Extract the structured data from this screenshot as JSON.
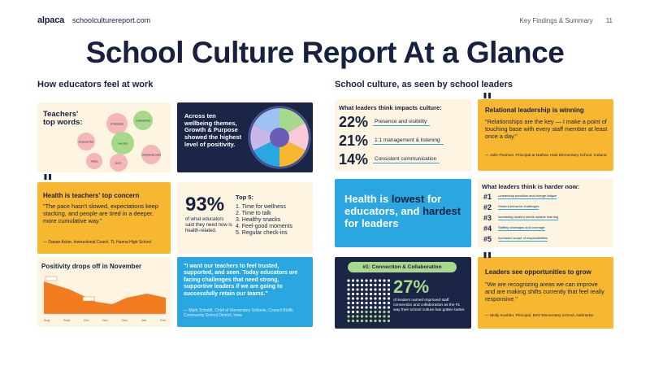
{
  "header": {
    "logo": "alpaca",
    "site": "schoolculturereport.com",
    "section": "Key Findings & Summary",
    "page": "11"
  },
  "title": "School Culture Report At a Glance",
  "left_heading": "How educators feel at work",
  "right_heading": "School culture, as seen by school leaders",
  "top_words": {
    "label": "Teachers' top words:",
    "bubbles": [
      {
        "word": "STRESSED",
        "color": "#f4b6b6"
      },
      {
        "word": "EXHAUSTED",
        "color": "#f4b6b6"
      },
      {
        "word": "SUPPORTED",
        "color": "#a8d98a"
      },
      {
        "word": "VALUED",
        "color": "#a8d98a"
      },
      {
        "word": "TIRED",
        "color": "#f4b6b6"
      },
      {
        "word": "OVERWHELMED",
        "color": "#f4b6b6"
      },
      {
        "word": "BUSY",
        "color": "#f4b6b6"
      }
    ]
  },
  "wellbeing": {
    "text": "Across ten wellbeing themes, Growth & Purpose showed the highest level of positivity."
  },
  "health_quote": {
    "heading": "Health is teachers' top concern",
    "quote": "\"The pace hasn't slowed, expectations keep stacking, and people are tired in a deeper, more cumulative way.\"",
    "attribution": "— Danae Acker, Instructional Coach, TL Hanna High School"
  },
  "stat93": {
    "value": "93%",
    "desc": "of what educators said they need now is health-related.",
    "top5_label": "Top 5:",
    "top5": [
      "1. Time for wellness",
      "2. Time to talk",
      "3. Healthy snacks",
      "4. Feel-good moments",
      "5. Regular check-ins"
    ]
  },
  "positivity": {
    "heading": "Positivity drops off in November",
    "months": [
      "Aug",
      "Sept",
      "Oct",
      "Nov",
      "Dec",
      "Jan",
      "Feb"
    ],
    "color": "#f47c20"
  },
  "mark_quote": {
    "quote": "\"I want our teachers to feel trusted, supported, and seen. Today educators are facing challenges that need strong, supportive leaders if we are going to successfully retain our teams.\"",
    "attribution": "— Mark Schuldt, Chief of Elementary Schools, Council Bluffs Community School District, Iowa"
  },
  "impacts": {
    "heading": "What leaders think impacts culture:",
    "rows": [
      {
        "pct": "22%",
        "label": "Presence and visibility"
      },
      {
        "pct": "21%",
        "label": "1:1 management & listening"
      },
      {
        "pct": "14%",
        "label": "Consistent communication"
      }
    ]
  },
  "relational": {
    "heading": "Relational leadership is winning",
    "quote": "\"Relationships are the key — I make a point of touching base with every staff member at least once a day.\"",
    "attribution": "— Julie Pearson, Principal at Nathan Hale Elementary School, Indiana"
  },
  "health_lowest": {
    "w1": "Health is",
    "w2": "lowest",
    "w3": "for educators, and",
    "w4": "hardest",
    "w5": "for leaders"
  },
  "harder": {
    "heading": "What leaders think is harder now:",
    "rows": [
      {
        "num": "#1",
        "label": "Leadership transition and change fatigue"
      },
      {
        "num": "#2",
        "label": "Student behavior challenges"
      },
      {
        "num": "#3",
        "label": "Increasing student needs outside learning"
      },
      {
        "num": "#4",
        "label": "Staffing shortages and coverage"
      },
      {
        "num": "#5",
        "label": "Increased scope of responsibilities"
      }
    ]
  },
  "connection": {
    "pill": "#1: Connection & Collaboration",
    "value": "27%",
    "desc": "of leaders named improved staff connection and collaboration as the #1 way their school culture has gotten better."
  },
  "opportunities": {
    "heading": "Leaders see opportunities to grow",
    "quote": "\"We are recognizing areas we can improve and are making shifts currently that feel really responsive.\"",
    "attribution": "— Molly Koehler, Principal, Belz Elementary School, Nebraska"
  }
}
